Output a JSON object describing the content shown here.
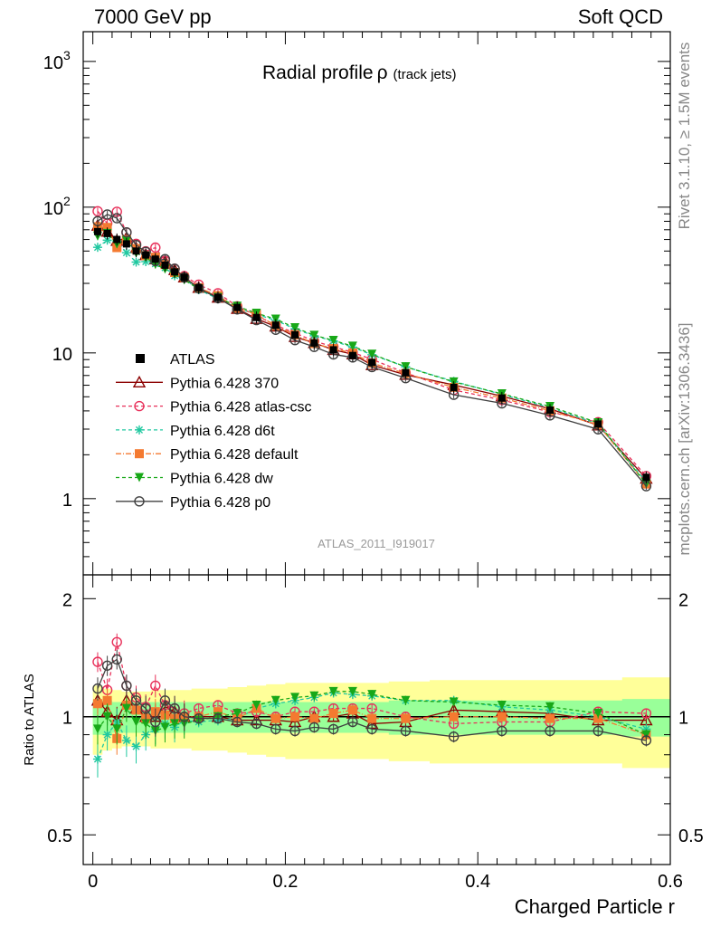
{
  "header": {
    "left": "7000 GeV pp",
    "right": "Soft QCD"
  },
  "side_text": {
    "rivet": "Rivet 3.1.10, ≥ 1.5M events",
    "site": "mcplots.cern.ch [arXiv:1306.3436]"
  },
  "chart_data": {
    "type": "line",
    "title": "Radial profile",
    "title_symbol": "ρ",
    "title_suffix": "(track jets)",
    "analysis": "ATLAS_2011_I919017",
    "xlabel": "Charged Particle r",
    "ylabel_ratio": "Ratio to ATLAS",
    "xlim": [
      -0.01,
      0.6
    ],
    "ylim_main": [
      0.3,
      1600
    ],
    "ylim_ratio": [
      0.42,
      2.3
    ],
    "log_y_main": true,
    "log_y_ratio": true,
    "x_ticks": [
      "0",
      "0.2",
      "0.4",
      "0.6"
    ],
    "x_tick_values": [
      0,
      0.2,
      0.4,
      0.6
    ],
    "y_ticks_main": [
      {
        "value": 1,
        "label": "1"
      },
      {
        "value": 10,
        "label": "10"
      },
      {
        "value": 100,
        "label": "10",
        "exp": "2"
      },
      {
        "value": 1000,
        "label": "10",
        "exp": "3"
      }
    ],
    "y_ticks_ratio": [
      {
        "value": 0.5,
        "label": "0.5"
      },
      {
        "value": 1,
        "label": "1"
      },
      {
        "value": 2,
        "label": "2"
      }
    ],
    "x": [
      0.005,
      0.015,
      0.025,
      0.035,
      0.045,
      0.055,
      0.065,
      0.075,
      0.085,
      0.095,
      0.11,
      0.13,
      0.15,
      0.17,
      0.19,
      0.21,
      0.23,
      0.25,
      0.27,
      0.29,
      0.325,
      0.375,
      0.425,
      0.475,
      0.525,
      0.575
    ],
    "data": {
      "name": "ATLAS",
      "values": [
        68,
        66,
        60,
        56,
        50,
        47,
        44,
        40,
        36,
        33,
        28,
        24,
        20.5,
        17.5,
        15.5,
        13.3,
        11.7,
        10.5,
        9.6,
        8.6,
        7.3,
        5.8,
        4.9,
        4.05,
        3.25,
        1.4
      ]
    },
    "band_stat_sys": [
      0.1,
      0.1,
      0.09,
      0.09,
      0.09,
      0.09,
      0.09,
      0.09,
      0.09,
      0.09,
      0.09,
      0.09,
      0.09,
      0.09,
      0.09,
      0.09,
      0.09,
      0.09,
      0.09,
      0.09,
      0.1,
      0.1,
      0.1,
      0.1,
      0.1,
      0.11
    ],
    "band_total": [
      0.2,
      0.18,
      0.17,
      0.16,
      0.16,
      0.16,
      0.17,
      0.17,
      0.17,
      0.17,
      0.18,
      0.18,
      0.19,
      0.2,
      0.21,
      0.22,
      0.22,
      0.22,
      0.22,
      0.22,
      0.23,
      0.24,
      0.24,
      0.24,
      0.24,
      0.26
    ],
    "series": [
      {
        "name": "Pythia 6.428 370",
        "color": "#8b0000",
        "dash": "",
        "marker": "triangle-open",
        "ratio": [
          1.1,
          1.03,
          0.98,
          1.1,
          1.05,
          1.0,
          1.0,
          1.06,
          1.03,
          1.0,
          1.0,
          1.0,
          0.98,
          0.98,
          0.98,
          0.97,
          1.0,
          1.0,
          1.02,
          0.96,
          0.97,
          1.04,
          1.03,
          1.02,
          0.98,
          0.98
        ]
      },
      {
        "name": "Pythia 6.428 atlas-csc",
        "color": "#e8305a",
        "dash": "4,3",
        "marker": "circle-open",
        "ratio": [
          1.38,
          1.17,
          1.55,
          1.2,
          1.12,
          1.06,
          1.2,
          1.07,
          1.05,
          1.02,
          1.05,
          1.07,
          1.02,
          1.03,
          1.0,
          1.03,
          1.03,
          1.05,
          1.05,
          1.05,
          1.0,
          0.96,
          0.97,
          0.97,
          1.03,
          1.02
        ]
      },
      {
        "name": "Pythia 6.428 d6t",
        "color": "#20c8a0",
        "dash": "4,3",
        "marker": "star",
        "ratio": [
          0.78,
          0.9,
          0.97,
          0.87,
          0.84,
          0.9,
          0.93,
          0.96,
          0.94,
          0.98,
          0.97,
          0.98,
          0.99,
          1.05,
          1.08,
          1.1,
          1.12,
          1.15,
          1.14,
          1.13,
          1.1,
          1.1,
          1.06,
          1.04,
          1.0,
          0.93
        ]
      },
      {
        "name": "Pythia 6.428 default",
        "color": "#f47a30",
        "dash": "6,2,1,2",
        "marker": "square",
        "ratio": [
          1.08,
          1.1,
          0.88,
          1.07,
          1.04,
          0.99,
          1.03,
          1.01,
          0.99,
          1.0,
          1.0,
          1.03,
          0.99,
          1.05,
          0.99,
          1.0,
          0.99,
          1.02,
          1.04,
          0.99,
          0.99,
          1.0,
          1.0,
          0.99,
          0.99,
          0.9
        ]
      },
      {
        "name": "Pythia 6.428 dw",
        "color": "#18a818",
        "dash": "4,3",
        "marker": "triangle-down",
        "ratio": [
          0.93,
          1.0,
          0.93,
          1.05,
          0.97,
          0.96,
          0.92,
          0.94,
          0.96,
          0.96,
          0.98,
          1.0,
          1.02,
          1.07,
          1.1,
          1.12,
          1.13,
          1.16,
          1.16,
          1.14,
          1.1,
          1.09,
          1.07,
          1.06,
          1.02,
          0.9
        ]
      },
      {
        "name": "Pythia 6.428 p0",
        "color": "#404040",
        "dash": "",
        "marker": "circle-open",
        "ratio": [
          1.18,
          1.35,
          1.4,
          1.2,
          1.1,
          1.05,
          0.97,
          1.1,
          1.05,
          1.0,
          0.99,
          0.99,
          0.97,
          0.96,
          0.93,
          0.92,
          0.94,
          0.93,
          0.97,
          0.93,
          0.92,
          0.89,
          0.92,
          0.92,
          0.92,
          0.87
        ]
      }
    ]
  }
}
